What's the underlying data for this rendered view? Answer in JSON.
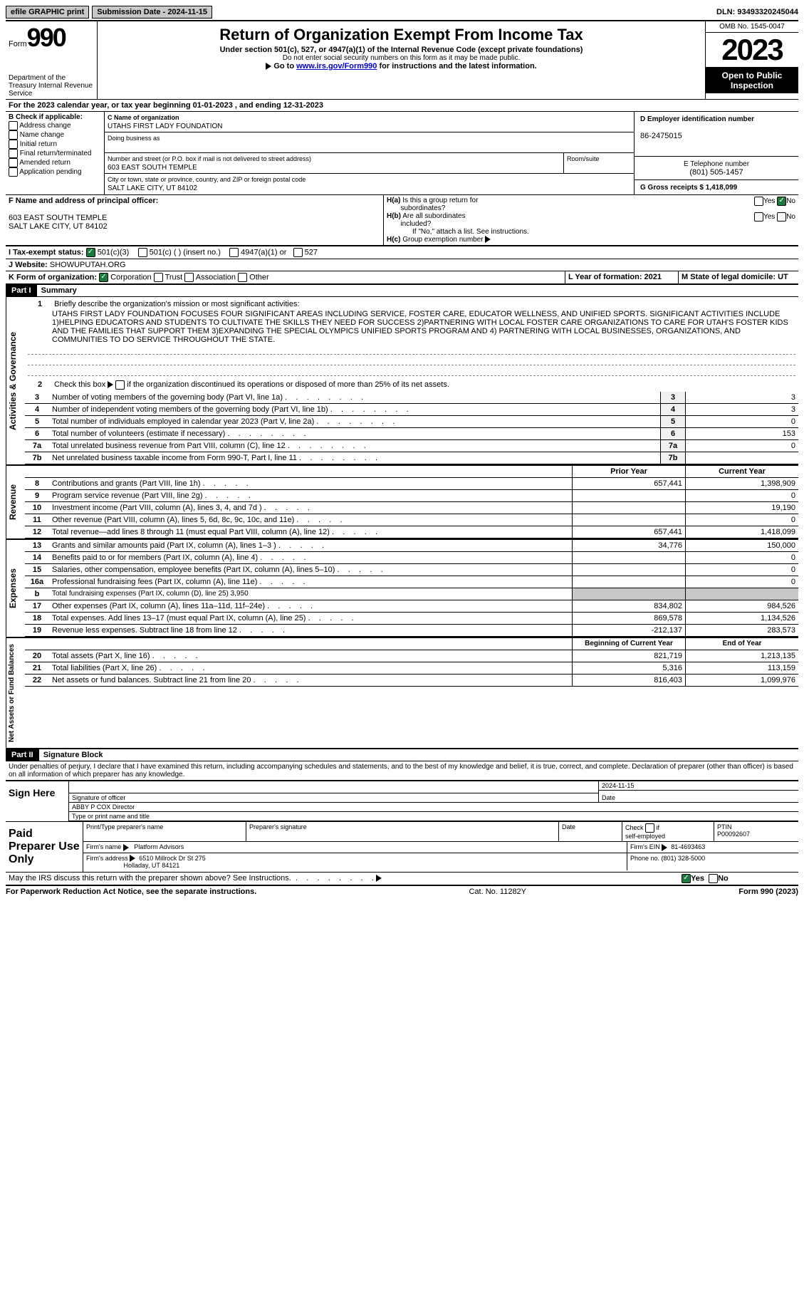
{
  "topbar": {
    "efile": "efile GRAPHIC print",
    "submission_label": "Submission Date - 2024-11-15",
    "dln_label": "DLN: 93493320245044"
  },
  "header": {
    "form_label": "Form",
    "form_no": "990",
    "dept": "Department of the Treasury\nInternal Revenue Service",
    "title": "Return of Organization Exempt From Income Tax",
    "subtitle": "Under section 501(c), 527, or 4947(a)(1) of the Internal Revenue Code (except private foundations)",
    "warn": "Do not enter social security numbers on this form as it may be made public.",
    "goto_prefix": "Go to ",
    "goto_link": "www.irs.gov/Form990",
    "goto_suffix": " for instructions and the latest information.",
    "omb": "OMB No. 1545-0047",
    "year": "2023",
    "public": "Open to Public Inspection"
  },
  "A": {
    "text": "For the 2023 calendar year, or tax year beginning 01-01-2023    , and ending 12-31-2023"
  },
  "B": {
    "label": "B Check if applicable:",
    "items": [
      "Address change",
      "Name change",
      "Initial return",
      "Final return/terminated",
      "Amended return",
      "Application pending"
    ]
  },
  "C": {
    "name_label": "C Name of organization",
    "name": "UTAHS FIRST LADY FOUNDATION",
    "dba_label": "Doing business as",
    "street_label": "Number and street (or P.O. box if mail is not delivered to street address)",
    "room_label": "Room/suite",
    "street": "603 EAST SOUTH TEMPLE",
    "city_label": "City or town, state or province, country, and ZIP or foreign postal code",
    "city": "SALT LAKE CITY, UT  84102"
  },
  "D": {
    "label": "D Employer identification number",
    "value": "86-2475015"
  },
  "E": {
    "label": "E Telephone number",
    "value": "(801) 505-1457"
  },
  "G": {
    "label": "G Gross receipts $ 1,418,099"
  },
  "F": {
    "label": "F  Name and address of principal officer:",
    "addr1": "603 EAST SOUTH TEMPLE",
    "addr2": "SALT LAKE CITY, UT  84102"
  },
  "H": {
    "a_label": "H(a)  Is this a group return for subordinates?",
    "yes": "Yes",
    "no": "No",
    "b_label": "H(b)  Are all subordinates included?",
    "b_note": "If \"No,\" attach a list. See instructions.",
    "c_label": "H(c)  Group exemption number "
  },
  "I": {
    "label": "I    Tax-exempt status:",
    "opt1": "501(c)(3)",
    "opt2": "501(c) (  ) (insert no.)",
    "opt3": "4947(a)(1) or",
    "opt4": "527"
  },
  "J": {
    "label": "J    Website: ",
    "value": "SHOWUPUTAH.ORG"
  },
  "K": {
    "label": "K Form of organization:",
    "corp": "Corporation",
    "trust": "Trust",
    "assoc": "Association",
    "other": "Other"
  },
  "L": {
    "label": "L Year of formation: 2021"
  },
  "M": {
    "label": "M State of legal domicile: UT"
  },
  "part1": {
    "label": "Part I",
    "title": "Summary",
    "vert1": "Activities & Governance",
    "vert2": "Revenue",
    "vert3": "Expenses",
    "vert4": "Net Assets or Fund Balances",
    "q1": "Briefly describe the organization's mission or most significant activities:",
    "mission": "UTAHS FIRST LADY FOUNDATION FOCUSES FOUR SIGNIFICANT AREAS INCLUDING SERVICE, FOSTER CARE, EDUCATOR WELLNESS, AND UNIFIED SPORTS. SIGNIFICANT ACTIVITIES INCLUDE 1)HELPING EDUCATORS AND STUDENTS TO CULTIVATE THE SKILLS THEY NEED FOR SUCCESS 2)PARTNERING WITH LOCAL FOSTER CARE ORGANIZATIONS TO CARE FOR UTAH'S FOSTER KIDS AND THE FAMILIES THAT SUPPORT THEM 3)EXPANDING THE SPECIAL OLYMPICS UNIFIED SPORTS PROGRAM AND 4) PARTNERING WITH LOCAL BUSINESSES, ORGANIZATIONS, AND COMMUNITIES TO DO SERVICE THROUGHOUT THE STATE.",
    "q2": "Check this box       if the organization discontinued its operations or disposed of more than 25% of its net assets.",
    "lines": {
      "3": {
        "d": "Number of voting members of the governing body (Part VI, line 1a)",
        "r": "3",
        "v": "3"
      },
      "4": {
        "d": "Number of independent voting members of the governing body (Part VI, line 1b)",
        "r": "4",
        "v": "3"
      },
      "5": {
        "d": "Total number of individuals employed in calendar year 2023 (Part V, line 2a)",
        "r": "5",
        "v": "0"
      },
      "6": {
        "d": "Total number of volunteers (estimate if necessary)",
        "r": "6",
        "v": "153"
      },
      "7a": {
        "d": "Total unrelated business revenue from Part VIII, column (C), line 12",
        "r": "7a",
        "v": "0"
      },
      "7b": {
        "d": "Net unrelated business taxable income from Form 990-T, Part I, line 11",
        "r": "7b",
        "v": ""
      }
    },
    "col_prior": "Prior Year",
    "col_current": "Current Year",
    "rev": {
      "8": {
        "d": "Contributions and grants (Part VIII, line 1h)",
        "p": "657,441",
        "c": "1,398,909"
      },
      "9": {
        "d": "Program service revenue (Part VIII, line 2g)",
        "p": "",
        "c": "0"
      },
      "10": {
        "d": "Investment income (Part VIII, column (A), lines 3, 4, and 7d )",
        "p": "",
        "c": "19,190"
      },
      "11": {
        "d": "Other revenue (Part VIII, column (A), lines 5, 6d, 8c, 9c, 10c, and 11e)",
        "p": "",
        "c": "0"
      },
      "12": {
        "d": "Total revenue—add lines 8 through 11 (must equal Part VIII, column (A), line 12)",
        "p": "657,441",
        "c": "1,418,099"
      }
    },
    "exp": {
      "13": {
        "d": "Grants and similar amounts paid (Part IX, column (A), lines 1–3 )",
        "p": "34,776",
        "c": "150,000"
      },
      "14": {
        "d": "Benefits paid to or for members (Part IX, column (A), line 4)",
        "p": "",
        "c": "0"
      },
      "15": {
        "d": "Salaries, other compensation, employee benefits (Part IX, column (A), lines 5–10)",
        "p": "",
        "c": "0"
      },
      "16a": {
        "d": "Professional fundraising fees (Part IX, column (A), line 11e)",
        "p": "",
        "c": "0"
      },
      "16b": {
        "d": "Total fundraising expenses (Part IX, column (D), line 25) 3,950"
      },
      "17": {
        "d": "Other expenses (Part IX, column (A), lines 11a–11d, 11f–24e)",
        "p": "834,802",
        "c": "984,526"
      },
      "18": {
        "d": "Total expenses. Add lines 13–17 (must equal Part IX, column (A), line 25)",
        "p": "869,578",
        "c": "1,134,526"
      },
      "19": {
        "d": "Revenue less expenses. Subtract line 18 from line 12",
        "p": "-212,137",
        "c": "283,573"
      }
    },
    "col_begin": "Beginning of Current Year",
    "col_end": "End of Year",
    "net": {
      "20": {
        "d": "Total assets (Part X, line 16)",
        "p": "821,719",
        "c": "1,213,135"
      },
      "21": {
        "d": "Total liabilities (Part X, line 26)",
        "p": "5,316",
        "c": "113,159"
      },
      "22": {
        "d": "Net assets or fund balances. Subtract line 21 from line 20",
        "p": "816,403",
        "c": "1,099,976"
      }
    }
  },
  "part2": {
    "label": "Part II",
    "title": "Signature Block",
    "decl": "Under penalties of perjury, I declare that I have examined this return, including accompanying schedules and statements, and to the best of my knowledge and belief, it is true, correct, and complete. Declaration of preparer (other than officer) is based on all information of which preparer has any knowledge.",
    "sign_here": "Sign Here",
    "sig_officer": "Signature of officer",
    "date_label": "Date",
    "date_val": "2024-11-15",
    "officer_name": "ABBY P COX  Director",
    "type_name": "Type or print name and title",
    "paid": "Paid Preparer Use Only",
    "prep_name_label": "Print/Type preparer's name",
    "prep_sig_label": "Preparer's signature",
    "check_self": "Check       if self-employed",
    "ptin_label": "PTIN",
    "ptin": "P00092607",
    "firm_name_label": "Firm's name  ",
    "firm_name": "Platform Advisors",
    "firm_ein_label": "Firm's EIN  ",
    "firm_ein": "81-4693463",
    "firm_addr_label": "Firm's address ",
    "firm_addr1": "6510 Millrock Dr St 275",
    "firm_addr2": "Holladay, UT  84121",
    "phone_label": "Phone no. ",
    "phone": "(801) 328-5000",
    "discuss": "May the IRS discuss this return with the preparer shown above? See Instructions.",
    "yes": "Yes",
    "no": "No"
  },
  "footer": {
    "left": "For Paperwork Reduction Act Notice, see the separate instructions.",
    "mid": "Cat. No. 11282Y",
    "right": "Form 990 (2023)"
  }
}
